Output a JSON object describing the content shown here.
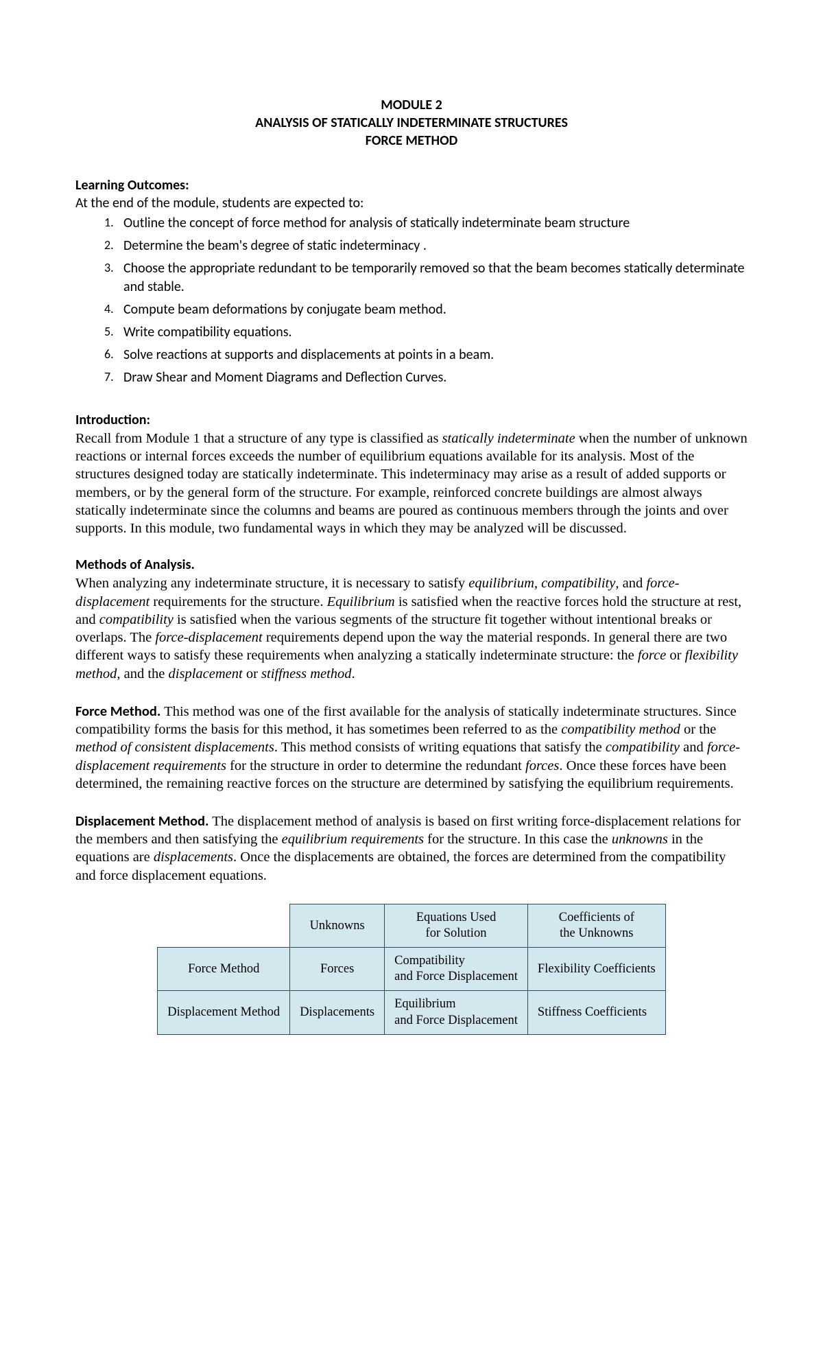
{
  "title": {
    "line1": "MODULE 2",
    "line2": "ANALYSIS OF STATICALLY INDETERMINATE STRUCTURES",
    "line3": "FORCE METHOD"
  },
  "learning": {
    "heading": "Learning Outcomes:",
    "lead": "At the end of the module, students are expected to:",
    "items": [
      {
        "n": "1.",
        "text": "Outline the concept of force method for analysis of statically indeterminate beam structure"
      },
      {
        "n": "2.",
        "text": "Determine the beam's degree of static indeterminacy ."
      },
      {
        "n": "3.",
        "text": "Choose the appropriate redundant to be temporarily removed so that the beam becomes statically determinate and stable."
      },
      {
        "n": "4.",
        "text": "Compute beam deformations by conjugate beam method."
      },
      {
        "n": "5.",
        "text": "Write compatibility equations."
      },
      {
        "n": "6.",
        "text": "Solve reactions at supports and displacements at points in a beam."
      },
      {
        "n": "7.",
        "text": "Draw Shear and Moment Diagrams and Deflection Curves."
      }
    ]
  },
  "intro": {
    "heading": "Introduction:",
    "p1a": "Recall from Module 1 that a structure of any type is classified as ",
    "p1i": "statically indeterminate",
    "p1b": " when the number of unknown reactions or internal forces exceeds the number of equilibrium equations available for its analysis. Most of the structures designed today are statically indeterminate. This indeterminacy may arise as a result of added supports or members, or by the general form of the structure. For example, reinforced concrete buildings are almost always statically indeterminate since the columns and beams are poured as continuous members through the joints and over supports. In this module, two fundamental ways in which they may be analyzed will be discussed."
  },
  "methods": {
    "heading": "Methods of Analysis.",
    "p_a": "When analyzing any indeterminate structure, it is necessary to satisfy ",
    "i1": "equilibrium",
    "c1": ", ",
    "i2": "compatibility",
    "c2": ", and ",
    "i3": "force-displacement",
    "p_b": " requirements for the structure. ",
    "i4": "Equilibrium",
    "p_c": " is satisfied when the reactive forces hold the structure at rest, and ",
    "i5": "compatibility",
    "p_d": " is satisfied when the various segments of the structure fit together without intentional breaks or overlaps. The ",
    "i6": "force-displacement",
    "p_e": " requirements depend upon the way the material responds. In general there are two different ways to satisfy these requirements when analyzing a statically indeterminate structure: the ",
    "i7": "force",
    "p_f": " or ",
    "i8": "flexibility method",
    "p_g": ", and the ",
    "i9": "displacement",
    "p_h": " or ",
    "i10": "stiffness method",
    "p_i": "."
  },
  "force": {
    "lead": "Force Method.",
    "a": " This method was one of the first available for the analysis of statically indeterminate structures. Since compatibility forms the basis for this method, it has sometimes been referred to as the ",
    "i1": "compatibility method",
    "b": " or the ",
    "i2": "method of consistent displacements",
    "c": ". This method consists of writing equations that satisfy the ",
    "i3": "compatibility",
    "d": " and ",
    "i4": "force-displacement requirements",
    "e": " for the structure in order to determine the redundant ",
    "i5": "forces",
    "f": ". Once these forces have been determined, the remaining reactive forces on the structure are determined by satisfying the equilibrium requirements."
  },
  "disp": {
    "lead": "Displacement Method.",
    "a": " The displacement method of analysis is based on first writing force-displacement relations for the members and then satisfying the ",
    "i1": "equilibrium requirements",
    "b": " for the structure. In this case the ",
    "i2": "unknowns",
    "c": " in the equations are ",
    "i3": "displacements",
    "d": ". Once the displacements are obtained, the forces are determined from the compatibility and force displacement equations."
  },
  "table": {
    "h1": "Unknowns",
    "h2a": "Equations Used",
    "h2b": "for Solution",
    "h3a": "Coefficients of",
    "h3b": "the Unknowns",
    "r1c0": "Force Method",
    "r1c1": "Forces",
    "r1c2a": "Compatibility",
    "r1c2b": "and Force Displacement",
    "r1c3": "Flexibility Coefficients",
    "r2c0": "Displacement Method",
    "r2c1": "Displacements",
    "r2c2a": "Equilibrium",
    "r2c2b": "and Force Displacement",
    "r2c3": "Stiffness Coefficients"
  }
}
